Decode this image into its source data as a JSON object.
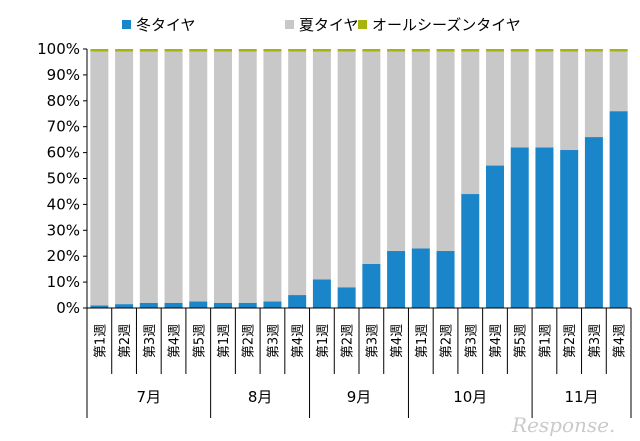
{
  "chart_data": {
    "type": "bar",
    "stacked": true,
    "series": [
      {
        "name": "冬タイヤ",
        "color": "#1a85c8",
        "values": [
          1,
          1.5,
          2,
          2,
          2.5,
          2,
          2,
          2.5,
          5,
          11,
          8,
          17,
          22,
          23,
          22,
          44,
          55,
          62,
          62,
          61,
          66,
          76
        ]
      },
      {
        "name": "夏タイヤ",
        "color": "#c8c8c8",
        "values": [
          98,
          97.5,
          97,
          97,
          96.5,
          97,
          97,
          96.5,
          94,
          88,
          91,
          82,
          77,
          76,
          77,
          55,
          44,
          37,
          37,
          38,
          33,
          23
        ]
      },
      {
        "name": "オールシーズンタイヤ",
        "color": "#a7b40f",
        "values": [
          1,
          1,
          1,
          1,
          1,
          1,
          1,
          1,
          1,
          1,
          1,
          1,
          1,
          1,
          1,
          1,
          1,
          1,
          1,
          1,
          1,
          1
        ]
      }
    ],
    "week_labels": [
      "第1週",
      "第2週",
      "第3週",
      "第4週",
      "第5週",
      "第1週",
      "第2週",
      "第3週",
      "第4週",
      "第1週",
      "第2週",
      "第3週",
      "第4週",
      "第1週",
      "第2週",
      "第3週",
      "第4週",
      "第5週",
      "第1週",
      "第2週",
      "第3週",
      "第4週"
    ],
    "months": [
      {
        "label": "7月",
        "weeks": 5
      },
      {
        "label": "8月",
        "weeks": 4
      },
      {
        "label": "9月",
        "weeks": 4
      },
      {
        "label": "10月",
        "weeks": 5
      },
      {
        "label": "11月",
        "weeks": 4
      }
    ],
    "y_ticks": [
      "0%",
      "10%",
      "20%",
      "30%",
      "40%",
      "50%",
      "60%",
      "70%",
      "80%",
      "90%",
      "100%"
    ],
    "ylim": [
      0,
      100
    ],
    "legend_position": "top",
    "grid": false
  },
  "watermark": "Response."
}
